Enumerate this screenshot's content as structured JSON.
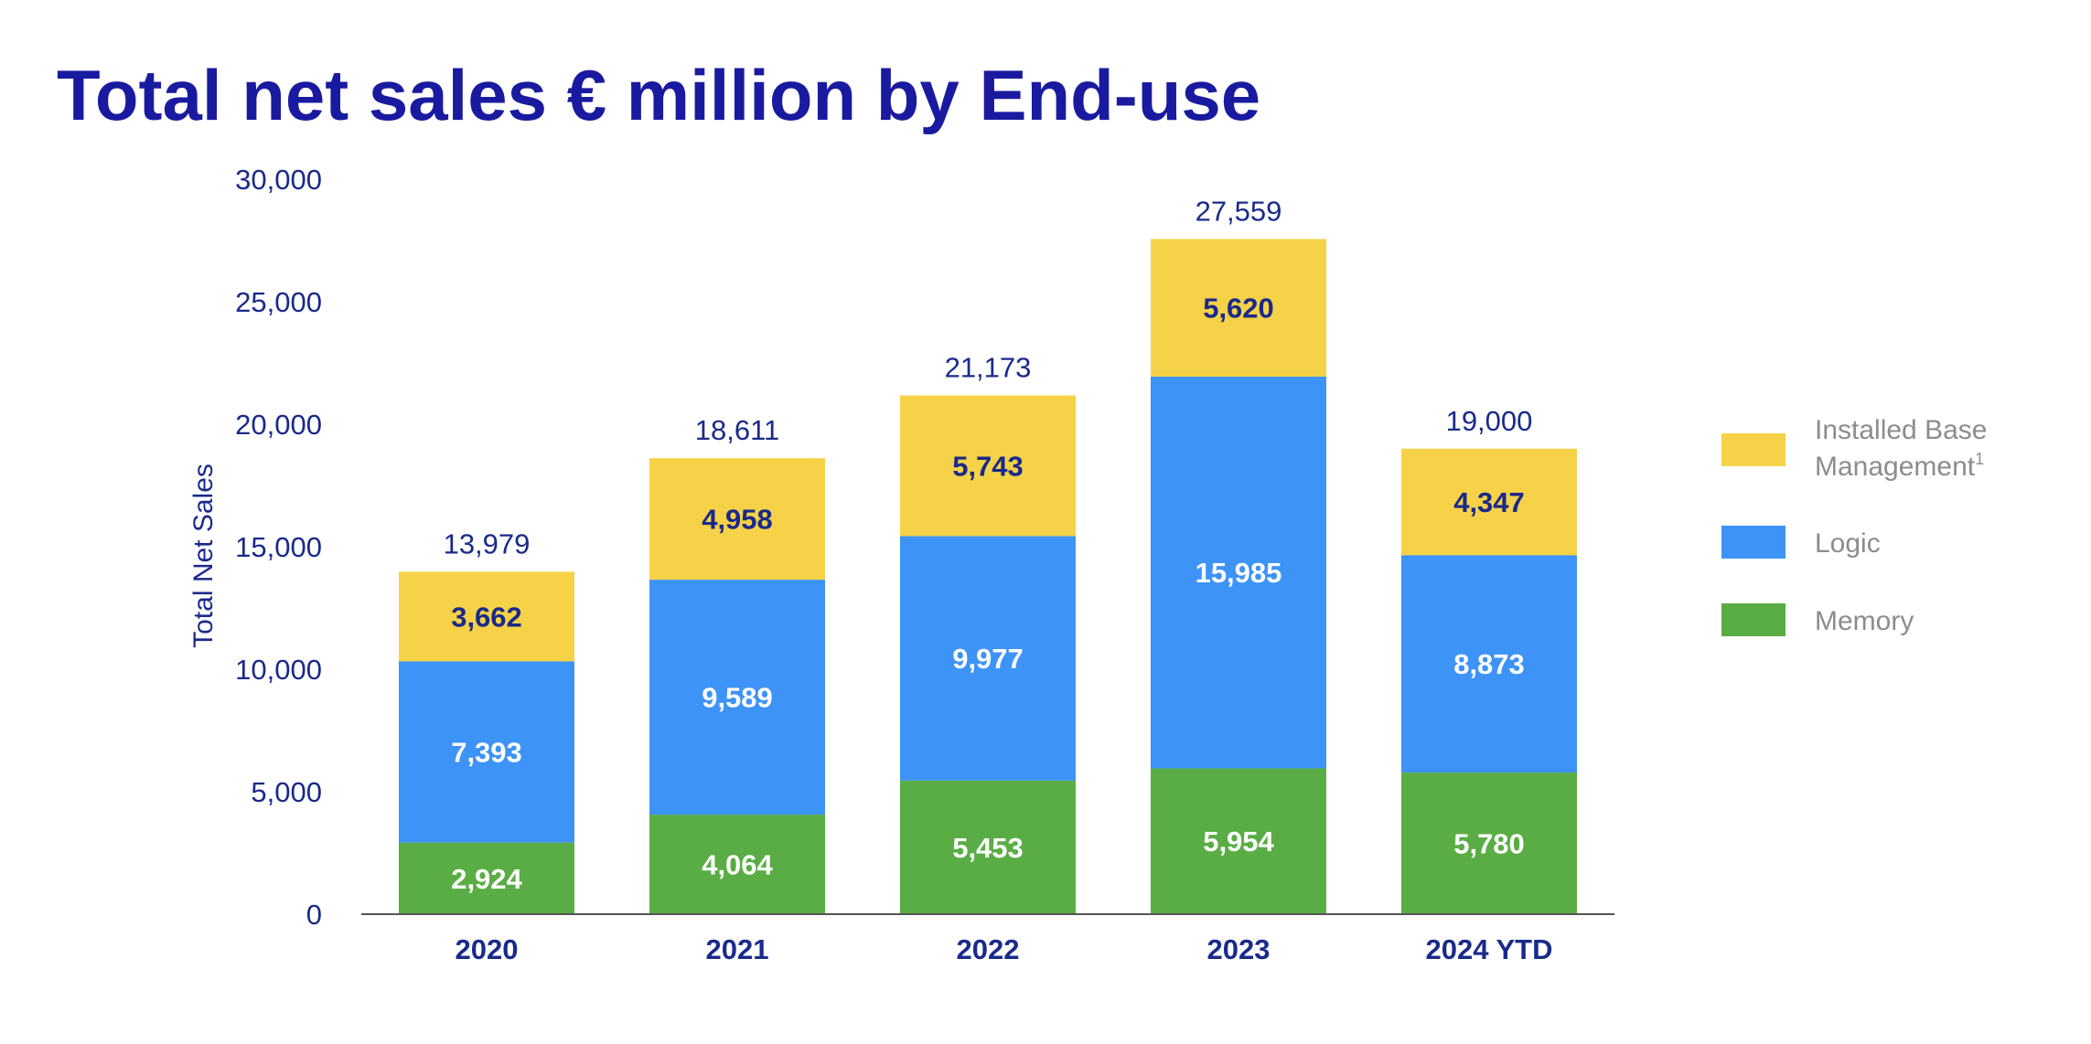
{
  "title": "Total net sales € million by End-use",
  "colors": {
    "title": "#1a1aa0",
    "axis_text": "#1a2a8a",
    "legend_text": "#8c8c8c",
    "baseline": "#555555"
  },
  "chart_data": {
    "type": "bar",
    "stacked": true,
    "title": "Total net sales € million by End-use",
    "xlabel": "",
    "ylabel": "Total Net Sales",
    "ylim": [
      0,
      30000
    ],
    "yticks": [
      "0",
      "5,000",
      "10,000",
      "15,000",
      "20,000",
      "25,000",
      "30,000"
    ],
    "ytick_values": [
      0,
      5000,
      10000,
      15000,
      20000,
      25000,
      30000
    ],
    "grid": false,
    "legend_position": "right",
    "categories": [
      "2020",
      "2021",
      "2022",
      "2023",
      "2024 YTD"
    ],
    "series": [
      {
        "name": "Memory",
        "color": "#5aad44",
        "label_color": "#ffffff",
        "values": [
          2924,
          4064,
          5453,
          5954,
          5780
        ],
        "labels": [
          "2,924",
          "4,064",
          "5,453",
          "5,954",
          "5,780"
        ]
      },
      {
        "name": "Logic",
        "color": "#3d93f6",
        "label_color": "#ffffff",
        "values": [
          7393,
          9589,
          9977,
          15985,
          8873
        ],
        "labels": [
          "7,393",
          "9,589",
          "9,977",
          "15,985",
          "8,873"
        ]
      },
      {
        "name": "Installed Base Management",
        "legend_lines": [
          "Installed Base",
          "Management"
        ],
        "legend_superscript": "1",
        "color": "#f6d248",
        "label_color": "#1a2a8a",
        "values": [
          3662,
          4958,
          5743,
          5620,
          4347
        ],
        "labels": [
          "3,662",
          "4,958",
          "5,743",
          "5,620",
          "4,347"
        ]
      }
    ],
    "totals": [
      13979,
      18611,
      21173,
      27559,
      19000
    ],
    "total_labels": [
      "13,979",
      "18,611",
      "21,173",
      "27,559",
      "19,000"
    ],
    "legend_order": [
      "Installed Base Management",
      "Logic",
      "Memory"
    ]
  }
}
